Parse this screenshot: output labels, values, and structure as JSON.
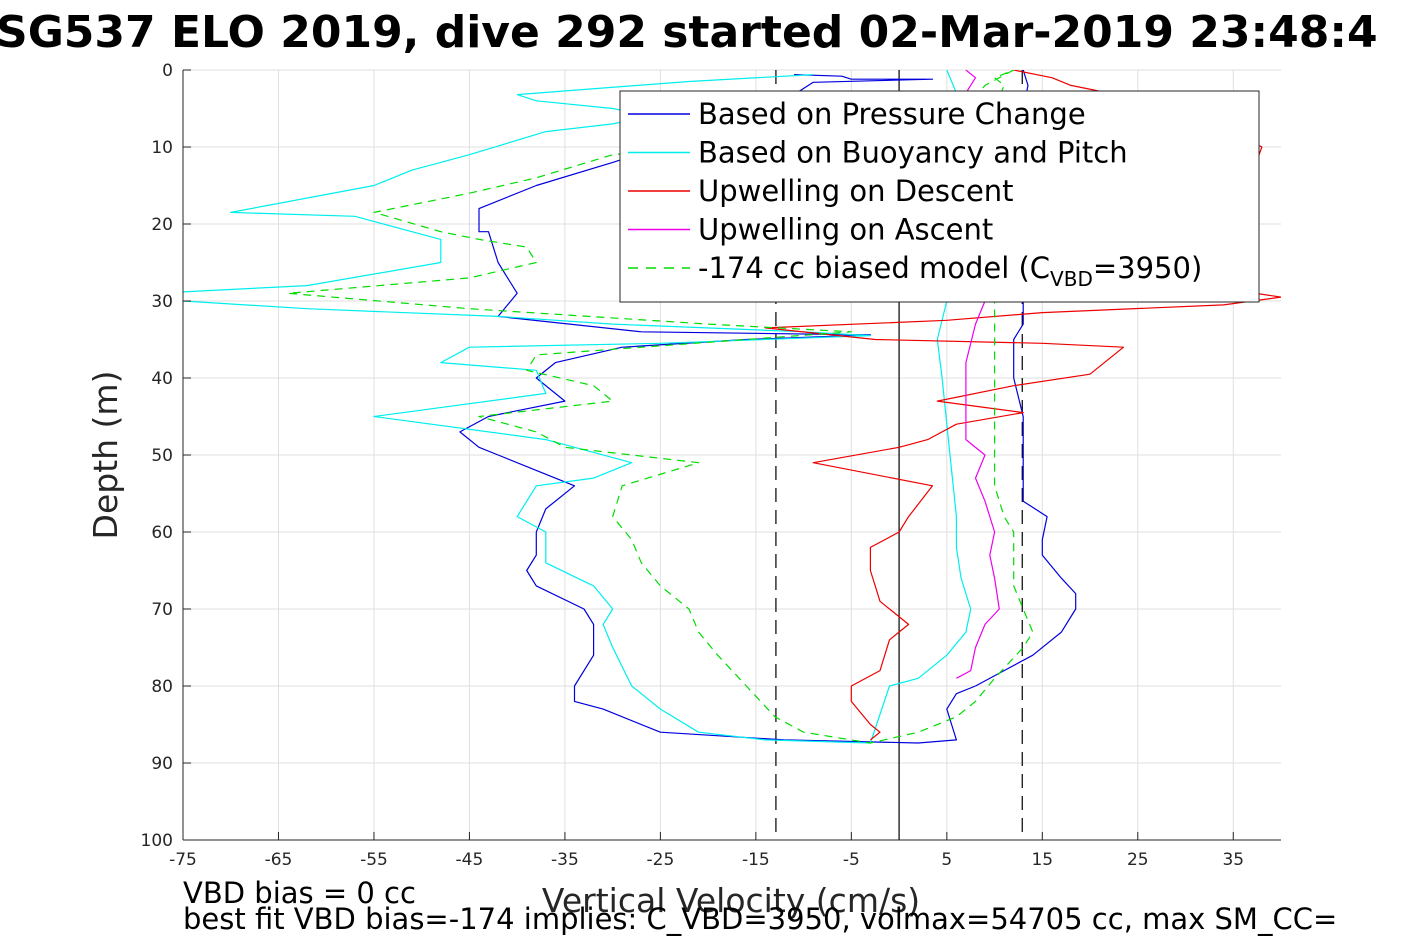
{
  "chart_data": {
    "type": "line",
    "title": "SG537 ELO 2019, dive 292 started 02-Mar-2019 23:48:4",
    "xlabel": "Vertical Velocity (cm/s)",
    "ylabel": "Depth (m)",
    "xlim": [
      -75,
      40
    ],
    "ylim": [
      0,
      100
    ],
    "y_reversed": true,
    "grid": true,
    "xticks": [
      "-75",
      "-65",
      "-55",
      "-45",
      "-35",
      "-25",
      "-15",
      "-5",
      "5",
      "15",
      "25",
      "35"
    ],
    "yticks": [
      "0",
      "10",
      "20",
      "30",
      "40",
      "50",
      "60",
      "70",
      "80",
      "90",
      "100"
    ],
    "legend_position": "top-right",
    "legend": [
      {
        "series": "pressure",
        "label": "Based on Pressure Change"
      },
      {
        "series": "buoyancy",
        "label": "Based on Buoyancy and Pitch"
      },
      {
        "series": "up_descent",
        "label": "Upwelling on Descent"
      },
      {
        "series": "up_ascent",
        "label": "Upwelling on Ascent"
      },
      {
        "series": "biased",
        "label": "-174 cc biased model (C",
        "subscript": "VBD",
        "suffix": "=3950)"
      }
    ],
    "vertical_lines": [
      {
        "x": -12.9,
        "style": "dashed",
        "color": "#000000"
      },
      {
        "x": 0,
        "style": "solid",
        "color": "#000000"
      },
      {
        "x": 12.9,
        "style": "dashed",
        "color": "#000000"
      }
    ],
    "series": [
      {
        "id": "pressure",
        "color": "#0000dd",
        "dash": "none",
        "points": [
          [
            -11,
            0.6
          ],
          [
            -6,
            0.8
          ],
          [
            -5,
            1.2
          ],
          [
            3.5,
            1.2
          ],
          [
            -9,
            1.6
          ],
          [
            -12,
            4
          ],
          [
            -15,
            8
          ],
          [
            -20,
            9
          ],
          [
            -25,
            10
          ],
          [
            -30,
            12
          ],
          [
            -38,
            15
          ],
          [
            -44,
            18
          ],
          [
            -44,
            21
          ],
          [
            -43,
            21
          ],
          [
            -42,
            25
          ],
          [
            -41,
            27
          ],
          [
            -40,
            29
          ],
          [
            -42,
            32
          ],
          [
            -27,
            34
          ],
          [
            -3,
            34.4
          ],
          [
            -16,
            35
          ],
          [
            -29,
            36
          ],
          [
            -36,
            38
          ],
          [
            -38,
            40
          ],
          [
            -35,
            43
          ],
          [
            -43,
            45
          ],
          [
            -46,
            47
          ],
          [
            -44,
            49
          ],
          [
            -42,
            50
          ],
          [
            -38,
            52
          ],
          [
            -34,
            54
          ],
          [
            -37,
            57
          ],
          [
            -38,
            60
          ],
          [
            -38,
            63
          ],
          [
            -39,
            65
          ],
          [
            -38,
            67
          ],
          [
            -33,
            70
          ],
          [
            -32,
            72
          ],
          [
            -32,
            76
          ],
          [
            -34,
            80
          ],
          [
            -34,
            82
          ],
          [
            -31,
            83
          ],
          [
            -25,
            86
          ],
          [
            -12,
            87
          ],
          [
            2,
            87.4
          ],
          [
            6,
            87
          ],
          [
            5.5,
            85
          ],
          [
            5,
            83
          ],
          [
            6,
            81
          ],
          [
            8,
            80
          ],
          [
            11,
            78
          ],
          [
            14,
            76
          ],
          [
            17,
            73
          ],
          [
            18.5,
            70
          ],
          [
            18.5,
            68
          ],
          [
            17,
            66
          ],
          [
            15,
            63
          ],
          [
            15,
            61
          ],
          [
            15.5,
            58
          ],
          [
            13,
            56
          ],
          [
            13,
            50
          ],
          [
            13,
            45
          ],
          [
            12,
            40
          ],
          [
            12,
            35
          ],
          [
            13,
            33
          ],
          [
            13,
            30
          ],
          [
            13,
            25
          ],
          [
            12.5,
            20
          ],
          [
            13,
            15
          ],
          [
            13,
            10
          ],
          [
            13,
            5
          ],
          [
            13.5,
            2
          ],
          [
            13,
            0
          ]
        ]
      },
      {
        "id": "buoyancy",
        "color": "#00eeee",
        "dash": "none",
        "points": [
          [
            -9,
            0.6
          ],
          [
            -22,
            1.5
          ],
          [
            -38,
            3
          ],
          [
            -40,
            3.2
          ],
          [
            -38,
            4
          ],
          [
            -30,
            5
          ],
          [
            -26,
            6
          ],
          [
            -30,
            7
          ],
          [
            -37,
            8
          ],
          [
            -45,
            11
          ],
          [
            -51,
            13
          ],
          [
            -55,
            15
          ],
          [
            -70,
            18.5
          ],
          [
            -57,
            19
          ],
          [
            -48,
            22
          ],
          [
            -48,
            25
          ],
          [
            -62,
            28
          ],
          [
            -78,
            29
          ],
          [
            -75,
            30
          ],
          [
            -62,
            31
          ],
          [
            -42,
            32
          ],
          [
            -30,
            33
          ],
          [
            -10,
            34
          ],
          [
            -3,
            34.5
          ],
          [
            -25,
            35.5
          ],
          [
            -45,
            36
          ],
          [
            -48,
            38
          ],
          [
            -38,
            39
          ],
          [
            -37,
            42
          ],
          [
            -55,
            45
          ],
          [
            -37,
            48
          ],
          [
            -28,
            51
          ],
          [
            -32,
            53
          ],
          [
            -38,
            54
          ],
          [
            -40,
            58
          ],
          [
            -37,
            60
          ],
          [
            -37,
            64
          ],
          [
            -32,
            67
          ],
          [
            -30,
            70
          ],
          [
            -31,
            72
          ],
          [
            -30,
            75
          ],
          [
            -28,
            80
          ],
          [
            -25,
            83
          ],
          [
            -21,
            86
          ],
          [
            -14,
            87
          ],
          [
            -3,
            87.4
          ],
          [
            -1,
            80
          ],
          [
            2,
            79
          ],
          [
            5,
            76
          ],
          [
            7,
            73
          ],
          [
            7.5,
            70
          ],
          [
            6.5,
            66
          ],
          [
            6,
            62
          ],
          [
            6,
            58
          ],
          [
            5.5,
            52
          ],
          [
            5,
            46
          ],
          [
            4.5,
            40
          ],
          [
            4,
            35
          ],
          [
            5,
            30
          ],
          [
            5.5,
            20
          ],
          [
            5,
            10
          ],
          [
            6,
            3
          ],
          [
            5,
            0
          ]
        ]
      },
      {
        "id": "up_descent",
        "color": "#ee0000",
        "dash": "none",
        "points": [
          [
            12,
            0
          ],
          [
            16,
            1
          ],
          [
            18,
            2
          ],
          [
            30,
            5
          ],
          [
            38,
            10
          ],
          [
            35,
            20
          ],
          [
            32,
            28
          ],
          [
            40,
            29.5
          ],
          [
            34,
            30.5
          ],
          [
            15,
            31.5
          ],
          [
            5,
            32.5
          ],
          [
            -14,
            33.5
          ],
          [
            -2.5,
            35
          ],
          [
            15,
            35.5
          ],
          [
            23.5,
            36
          ],
          [
            20,
            39.5
          ],
          [
            12,
            41
          ],
          [
            4,
            43
          ],
          [
            13,
            44.5
          ],
          [
            6,
            46
          ],
          [
            3,
            48
          ],
          [
            0,
            49
          ],
          [
            -9,
            51
          ],
          [
            3.5,
            54
          ],
          [
            1,
            58
          ],
          [
            0,
            60
          ],
          [
            -3,
            62
          ],
          [
            -3,
            65
          ],
          [
            -2,
            69
          ],
          [
            1,
            72
          ],
          [
            -1,
            74
          ],
          [
            -2,
            78
          ],
          [
            -5,
            80
          ],
          [
            -5,
            82
          ],
          [
            -3,
            85
          ],
          [
            -2,
            86
          ],
          [
            -3,
            87
          ]
        ]
      },
      {
        "id": "up_ascent",
        "color": "#ee00ee",
        "dash": "none",
        "points": [
          [
            7,
            0
          ],
          [
            8,
            1
          ],
          [
            7,
            3
          ],
          [
            8,
            5
          ],
          [
            8.5,
            10
          ],
          [
            8.5,
            20
          ],
          [
            9,
            25
          ],
          [
            9,
            30
          ],
          [
            8,
            33
          ],
          [
            7,
            38
          ],
          [
            7,
            43
          ],
          [
            7,
            48
          ],
          [
            9,
            50
          ],
          [
            8,
            53
          ],
          [
            9,
            56
          ],
          [
            10,
            60
          ],
          [
            9.5,
            63
          ],
          [
            10,
            66
          ],
          [
            10.5,
            70
          ],
          [
            9,
            72
          ],
          [
            8,
            75
          ],
          [
            7.5,
            78
          ],
          [
            6,
            79
          ]
        ]
      },
      {
        "id": "biased",
        "color": "#00dd00",
        "dash": "8,6",
        "points": [
          [
            12,
            0
          ],
          [
            9,
            2
          ],
          [
            7,
            5
          ],
          [
            -10,
            9
          ],
          [
            -30,
            11
          ],
          [
            -38,
            14
          ],
          [
            -45,
            16
          ],
          [
            -55,
            18.5
          ],
          [
            -48,
            21
          ],
          [
            -44,
            22
          ],
          [
            -39,
            23
          ],
          [
            -38,
            25
          ],
          [
            -45,
            27
          ],
          [
            -64,
            29
          ],
          [
            -45,
            31
          ],
          [
            -20,
            33
          ],
          [
            -5,
            34
          ],
          [
            -16,
            35
          ],
          [
            -38,
            37
          ],
          [
            -39,
            39
          ],
          [
            -32,
            41
          ],
          [
            -30,
            43
          ],
          [
            -44,
            45
          ],
          [
            -38,
            47
          ],
          [
            -35,
            49
          ],
          [
            -21,
            51
          ],
          [
            -29,
            54
          ],
          [
            -30,
            58
          ],
          [
            -28,
            61
          ],
          [
            -27,
            64
          ],
          [
            -25,
            67
          ],
          [
            -22,
            70
          ],
          [
            -21,
            73
          ],
          [
            -19,
            76
          ],
          [
            -16,
            80
          ],
          [
            -13,
            84
          ],
          [
            -10,
            86
          ],
          [
            -3,
            87.4
          ],
          [
            2,
            86
          ],
          [
            6,
            84
          ],
          [
            8,
            82
          ],
          [
            10,
            79
          ],
          [
            13,
            75
          ],
          [
            14,
            73
          ],
          [
            13,
            70
          ],
          [
            12,
            67
          ],
          [
            12,
            63
          ],
          [
            12,
            60
          ],
          [
            11,
            58
          ],
          [
            10,
            54
          ],
          [
            10,
            50
          ],
          [
            10,
            45
          ],
          [
            10,
            40
          ],
          [
            10,
            35
          ],
          [
            10,
            30
          ],
          [
            10,
            25
          ],
          [
            10,
            20
          ],
          [
            10,
            15
          ],
          [
            10,
            10
          ],
          [
            10,
            5
          ],
          [
            11,
            2
          ],
          [
            10,
            1
          ],
          [
            12,
            0
          ]
        ]
      }
    ]
  },
  "footer": {
    "line1": "VBD bias = 0 cc",
    "line2": "best fit VBD bias=-174 implies: C_VBD=3950, volmax=54705 cc, max SM_CC="
  }
}
